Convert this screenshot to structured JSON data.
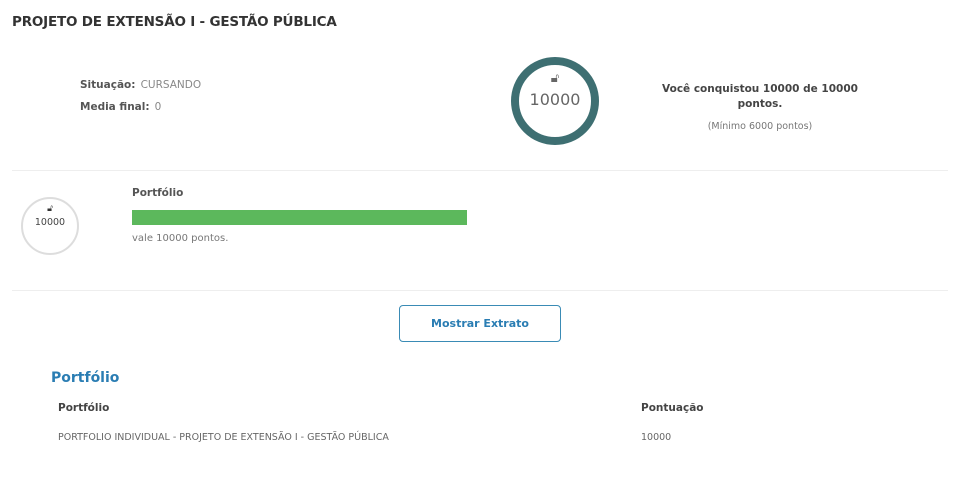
{
  "course": {
    "title": "PROJETO DE EXTENSÃO I - GESTÃO PÚBLICA"
  },
  "summary": {
    "situacao_label": "Situação:",
    "situacao_value": "CURSANDO",
    "media_label": "Media final:",
    "media_value": "0",
    "points": "10000",
    "conquest_text": "Você conquistou 10000 de 10000 pontos.",
    "minimum_text": "(Mínimo 6000 pontos)",
    "lock_icon": "unlock-icon",
    "ring_color": "#3e6f72"
  },
  "activity": {
    "points": "10000",
    "name": "Portfólio",
    "progress_percent": 100,
    "bar_color": "#5cb85c",
    "worth_text": "vale 10000 pontos."
  },
  "extract_button": "Mostrar Extrato",
  "table": {
    "section_title": "Portfólio",
    "headers": [
      "Portfólio",
      "Pontuação"
    ],
    "rows": [
      [
        "PORTFOLIO INDIVIDUAL - PROJETO DE EXTENSÃO I - GESTÃO PÚBLICA",
        "10000"
      ]
    ]
  }
}
